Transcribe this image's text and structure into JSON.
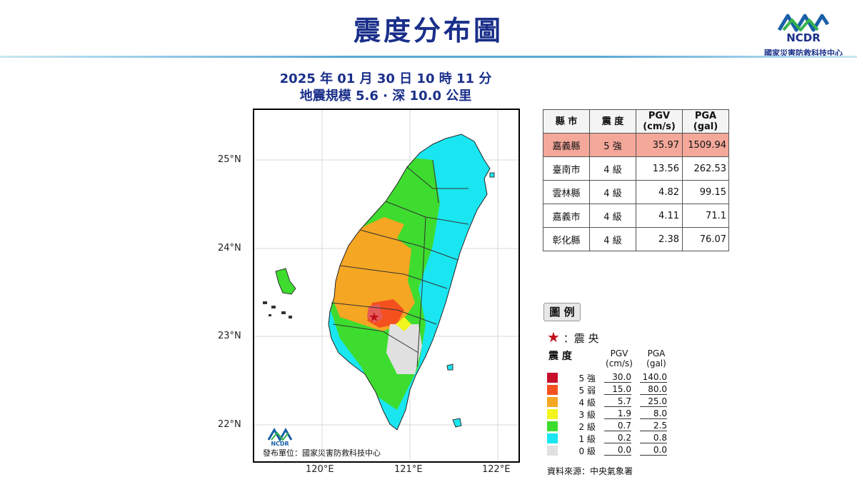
{
  "title": "震度分布圖",
  "org": {
    "logo_text": "NCDR",
    "name": "國家災害防救科技中心"
  },
  "event": {
    "datetime": "2025 年 01 月 30 日 10 時 11 分",
    "magnitude_depth": "地震規模 5.6 · 深 10.0 公里"
  },
  "map": {
    "lat_labels": [
      "25°N",
      "24°N",
      "23°N",
      "22°N"
    ],
    "lon_labels": [
      "120°E",
      "121°E",
      "122°E"
    ],
    "issuer": "發布單位：國家災害防救科技中心",
    "inset_logo_text": "NCDR"
  },
  "table": {
    "headers": {
      "county": "縣 市",
      "intensity": "震 度",
      "pgv": "PGV",
      "pgv_unit": "(cm/s)",
      "pga": "PGA",
      "pga_unit": "(gal)"
    },
    "rows": [
      {
        "county": "嘉義縣",
        "intensity": "5 強",
        "pgv": "35.97",
        "pga": "1509.94"
      },
      {
        "county": "臺南市",
        "intensity": "4 級",
        "pgv": "13.56",
        "pga": "262.53"
      },
      {
        "county": "雲林縣",
        "intensity": "4 級",
        "pgv": "4.82",
        "pga": "99.15"
      },
      {
        "county": "嘉義市",
        "intensity": "4 級",
        "pgv": "4.11",
        "pga": "71.1"
      },
      {
        "county": "彰化縣",
        "intensity": "4 級",
        "pgv": "2.38",
        "pga": "76.07"
      }
    ]
  },
  "legend": {
    "title": "圖 例",
    "epicenter_label": "：震 央",
    "col_intensity": "震 度",
    "col_pgv": "PGV",
    "col_pgv_unit": "(cm/s)",
    "col_pga": "PGA",
    "col_pga_unit": "(gal)",
    "levels": [
      {
        "label": "5 強",
        "pgv": "30.0",
        "pga": "140.0",
        "color": "#c8102e"
      },
      {
        "label": "5 弱",
        "pgv": "15.0",
        "pga": "80.0",
        "color": "#f4511e"
      },
      {
        "label": "4 級",
        "pgv": "5.7",
        "pga": "25.0",
        "color": "#f5a623"
      },
      {
        "label": "3 級",
        "pgv": "1.9",
        "pga": "8.0",
        "color": "#f2f51e"
      },
      {
        "label": "2 級",
        "pgv": "0.7",
        "pga": "2.5",
        "color": "#3ddc2f"
      },
      {
        "label": "1 級",
        "pgv": "0.2",
        "pga": "0.8",
        "color": "#19e6f0"
      },
      {
        "label": "0 級",
        "pgv": "0.0",
        "pga": "0.0",
        "color": "#e0e0e0"
      }
    ]
  },
  "source": "資料來源：中央氣象署"
}
